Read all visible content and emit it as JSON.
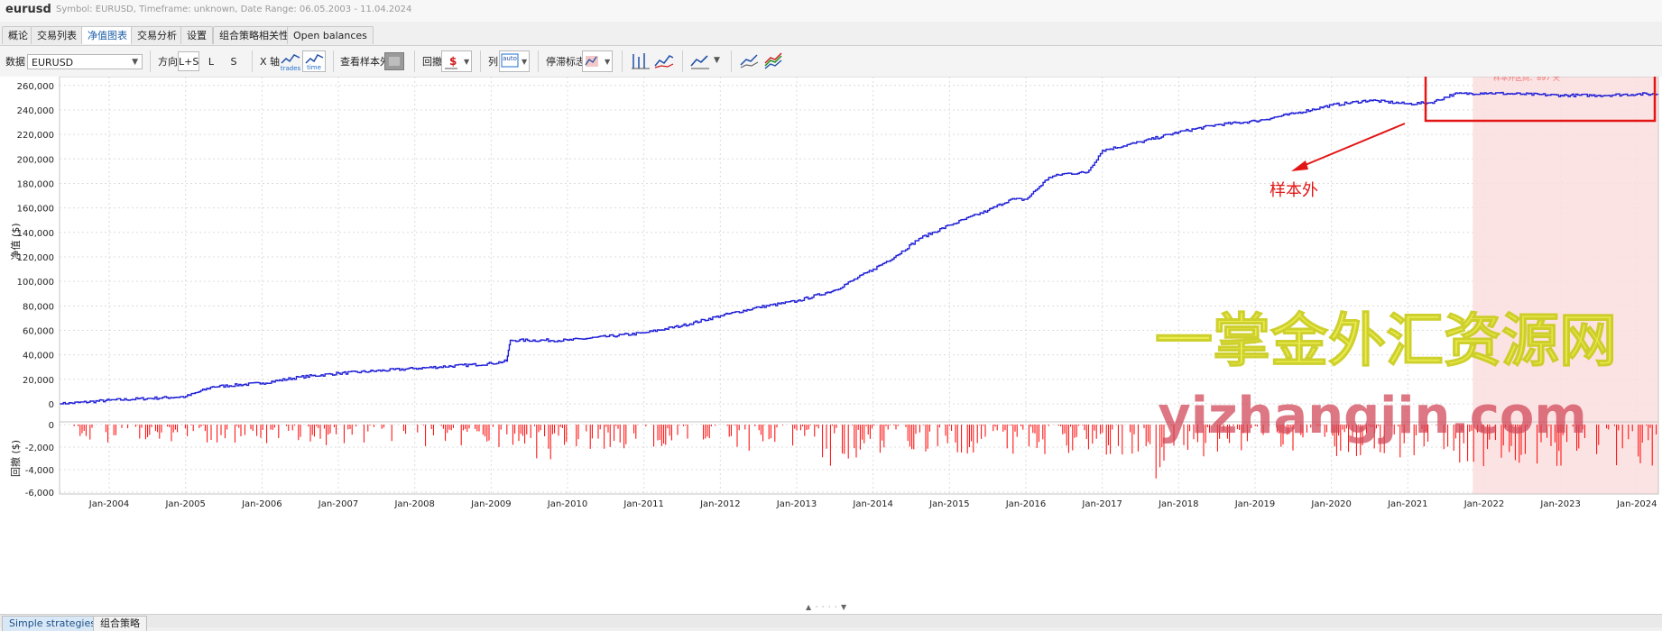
{
  "window": {
    "title": "eurusd",
    "meta": "Symbol: EURUSD, Timeframe: unknown, Date Range: 06.05.2003 - 11.04.2024"
  },
  "tabs": [
    {
      "label": "概论"
    },
    {
      "label": "交易列表"
    },
    {
      "label": "净值图表"
    },
    {
      "label": "交易分析"
    },
    {
      "label": "设置"
    },
    {
      "label": "组合策略相关性"
    },
    {
      "label": "Open balances"
    }
  ],
  "active_tab": 2,
  "toolbar": {
    "data_label": "数据",
    "data_select": "EURUSD",
    "direction_label": "方向",
    "dir_ls": "L+S",
    "dir_l": "L",
    "dir_s": "S",
    "xaxis_label": "X 轴",
    "xaxis_trades": "trades",
    "xaxis_time": "time",
    "out_of_sample_label": "查看样本外",
    "drawdown_label": "回撤",
    "drawdown_glyph": "$",
    "columns_label": "列",
    "columns_value": "auto",
    "stagnation_label": "停滞标志"
  },
  "chart_data": [
    {
      "type": "line",
      "ylabel": "净值 ($)",
      "ylim": [
        0,
        265000
      ],
      "yticks": [
        "260,000",
        "240,000",
        "220,000",
        "200,000",
        "180,000",
        "160,000",
        "140,000",
        "120,000",
        "100,000",
        "80,000",
        "60,000",
        "40,000",
        "20,000",
        "0"
      ],
      "x_tick_labels": [
        "Jan-2004",
        "Jan-2005",
        "Jan-2006",
        "Jan-2007",
        "Jan-2008",
        "Jan-2009",
        "Jan-2010",
        "Jan-2011",
        "Jan-2012",
        "Jan-2013",
        "Jan-2014",
        "Jan-2015",
        "Jan-2016",
        "Jan-2017",
        "Jan-2018",
        "Jan-2019",
        "Jan-2020",
        "Jan-2021",
        "Jan-2022",
        "Jan-2023",
        "Jan-2024"
      ],
      "xlim": [
        2003.35,
        2024.28
      ],
      "series": [
        {
          "color": "#1f1fd6",
          "x": [
            2003.35,
            2004.0,
            2005.0,
            2005.35,
            2006.0,
            2006.5,
            2007.0,
            2008.0,
            2009.0,
            2009.2,
            2009.25,
            2010.0,
            2011.0,
            2011.5,
            2012.0,
            2012.5,
            2013.0,
            2013.5,
            2014.0,
            2014.3,
            2014.6,
            2015.0,
            2015.5,
            2015.8,
            2016.0,
            2016.3,
            2016.5,
            2016.8,
            2017.0,
            2017.5,
            2018.0,
            2018.5,
            2019.0,
            2019.5,
            2020.0,
            2020.5,
            2021.0,
            2021.3,
            2021.6,
            2022.0,
            2022.5,
            2023.0,
            2023.5,
            2024.0,
            2024.28
          ],
          "y": [
            0,
            3000,
            6000,
            14000,
            17000,
            22000,
            25000,
            29000,
            33000,
            35000,
            52000,
            52000,
            58000,
            64000,
            72000,
            79000,
            84000,
            93000,
            110000,
            121000,
            135000,
            146000,
            158000,
            167000,
            167000,
            185000,
            188000,
            189000,
            207000,
            214000,
            222000,
            228000,
            231000,
            237000,
            244000,
            248000,
            245000,
            246000,
            253000,
            254000,
            253000,
            252000,
            252000,
            253000,
            253000
          ]
        }
      ],
      "out_of_sample_start": 2021.85
    },
    {
      "type": "bar",
      "ylabel": "回撤 ($)",
      "ylim": [
        -6000,
        0
      ],
      "yticks": [
        "0",
        "-2,000",
        "-4,000",
        "-6,000"
      ],
      "color": "#ff0000",
      "seed": 17
    }
  ],
  "annotations": {
    "oos_label": "样本外",
    "oos_box_caption": "样本外区间：897 天",
    "watermark_cn": "一掌金外汇资源网",
    "watermark_url": "yizhangjin.com"
  },
  "bottom_tabs": [
    {
      "label": "Simple strategies"
    },
    {
      "label": "组合策略"
    }
  ]
}
